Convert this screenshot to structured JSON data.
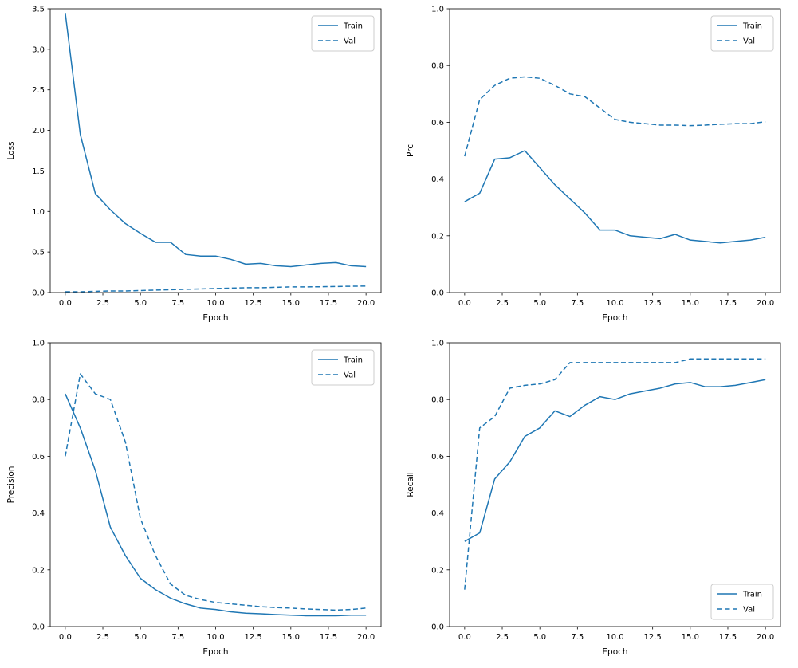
{
  "figure": {
    "background": "#ffffff",
    "accent_color": "#1f77b4",
    "spine_color": "#000000",
    "legend_border_color": "#cccccc"
  },
  "chart_data": [
    {
      "type": "line",
      "title": "",
      "xlabel": "Epoch",
      "ylabel": "Loss",
      "xlim": [
        -1,
        21
      ],
      "ylim": [
        0,
        3.5
      ],
      "xticks": [
        0.0,
        2.5,
        5.0,
        7.5,
        10.0,
        12.5,
        15.0,
        17.5,
        20.0
      ],
      "yticks": [
        0.0,
        0.5,
        1.0,
        1.5,
        2.0,
        2.5,
        3.0,
        3.5
      ],
      "grid": false,
      "legend_position": "upper-right",
      "x": [
        0,
        1,
        2,
        3,
        4,
        5,
        6,
        7,
        8,
        9,
        10,
        11,
        12,
        13,
        14,
        15,
        16,
        17,
        18,
        19,
        20
      ],
      "series": [
        {
          "name": "Train",
          "style": "solid",
          "color": "#1f77b4",
          "values": [
            3.45,
            1.95,
            1.22,
            1.02,
            0.85,
            0.73,
            0.62,
            0.62,
            0.47,
            0.45,
            0.45,
            0.41,
            0.35,
            0.36,
            0.33,
            0.32,
            0.34,
            0.36,
            0.37,
            0.33,
            0.32
          ]
        },
        {
          "name": "Val",
          "style": "dashed",
          "color": "#1f77b4",
          "values": [
            0.01,
            0.01,
            0.015,
            0.02,
            0.02,
            0.025,
            0.03,
            0.035,
            0.04,
            0.045,
            0.05,
            0.055,
            0.06,
            0.06,
            0.065,
            0.07,
            0.07,
            0.072,
            0.075,
            0.078,
            0.08
          ]
        }
      ]
    },
    {
      "type": "line",
      "title": "",
      "xlabel": "Epoch",
      "ylabel": "Prc",
      "xlim": [
        -1,
        21
      ],
      "ylim": [
        0,
        1.0
      ],
      "xticks": [
        0.0,
        2.5,
        5.0,
        7.5,
        10.0,
        12.5,
        15.0,
        17.5,
        20.0
      ],
      "yticks": [
        0.0,
        0.2,
        0.4,
        0.6,
        0.8,
        1.0
      ],
      "grid": false,
      "legend_position": "upper-right",
      "x": [
        0,
        1,
        2,
        3,
        4,
        5,
        6,
        7,
        8,
        9,
        10,
        11,
        12,
        13,
        14,
        15,
        16,
        17,
        18,
        19,
        20
      ],
      "series": [
        {
          "name": "Train",
          "style": "solid",
          "color": "#1f77b4",
          "values": [
            0.32,
            0.35,
            0.47,
            0.475,
            0.5,
            0.44,
            0.38,
            0.33,
            0.28,
            0.22,
            0.22,
            0.2,
            0.195,
            0.19,
            0.205,
            0.185,
            0.18,
            0.175,
            0.18,
            0.185,
            0.195
          ]
        },
        {
          "name": "Val",
          "style": "dashed",
          "color": "#1f77b4",
          "values": [
            0.48,
            0.68,
            0.73,
            0.755,
            0.76,
            0.755,
            0.73,
            0.7,
            0.69,
            0.65,
            0.61,
            0.6,
            0.595,
            0.59,
            0.59,
            0.588,
            0.59,
            0.593,
            0.595,
            0.595,
            0.602
          ]
        }
      ]
    },
    {
      "type": "line",
      "title": "",
      "xlabel": "Epoch",
      "ylabel": "Precision",
      "xlim": [
        -1,
        21
      ],
      "ylim": [
        0,
        1.0
      ],
      "xticks": [
        0.0,
        2.5,
        5.0,
        7.5,
        10.0,
        12.5,
        15.0,
        17.5,
        20.0
      ],
      "yticks": [
        0.0,
        0.2,
        0.4,
        0.6,
        0.8,
        1.0
      ],
      "grid": false,
      "legend_position": "upper-right",
      "x": [
        0,
        1,
        2,
        3,
        4,
        5,
        6,
        7,
        8,
        9,
        10,
        11,
        12,
        13,
        14,
        15,
        16,
        17,
        18,
        19,
        20
      ],
      "series": [
        {
          "name": "Train",
          "style": "solid",
          "color": "#1f77b4",
          "values": [
            0.82,
            0.7,
            0.55,
            0.35,
            0.25,
            0.17,
            0.13,
            0.1,
            0.08,
            0.065,
            0.06,
            0.052,
            0.047,
            0.045,
            0.042,
            0.04,
            0.038,
            0.038,
            0.038,
            0.04,
            0.04
          ]
        },
        {
          "name": "Val",
          "style": "dashed",
          "color": "#1f77b4",
          "values": [
            0.6,
            0.89,
            0.82,
            0.8,
            0.65,
            0.38,
            0.25,
            0.15,
            0.11,
            0.095,
            0.085,
            0.08,
            0.075,
            0.07,
            0.067,
            0.065,
            0.062,
            0.06,
            0.058,
            0.06,
            0.065
          ]
        }
      ]
    },
    {
      "type": "line",
      "title": "",
      "xlabel": "Epoch",
      "ylabel": "Recall",
      "xlim": [
        -1,
        21
      ],
      "ylim": [
        0,
        1.0
      ],
      "xticks": [
        0.0,
        2.5,
        5.0,
        7.5,
        10.0,
        12.5,
        15.0,
        17.5,
        20.0
      ],
      "yticks": [
        0.0,
        0.2,
        0.4,
        0.6,
        0.8,
        1.0
      ],
      "grid": false,
      "legend_position": "lower-right",
      "x": [
        0,
        1,
        2,
        3,
        4,
        5,
        6,
        7,
        8,
        9,
        10,
        11,
        12,
        13,
        14,
        15,
        16,
        17,
        18,
        19,
        20
      ],
      "series": [
        {
          "name": "Train",
          "style": "solid",
          "color": "#1f77b4",
          "values": [
            0.3,
            0.33,
            0.52,
            0.58,
            0.67,
            0.7,
            0.76,
            0.74,
            0.78,
            0.81,
            0.8,
            0.82,
            0.83,
            0.84,
            0.855,
            0.86,
            0.845,
            0.845,
            0.85,
            0.86,
            0.87
          ]
        },
        {
          "name": "Val",
          "style": "dashed",
          "color": "#1f77b4",
          "values": [
            0.13,
            0.7,
            0.74,
            0.84,
            0.85,
            0.855,
            0.87,
            0.93,
            0.93,
            0.93,
            0.93,
            0.93,
            0.93,
            0.93,
            0.93,
            0.943,
            0.943,
            0.943,
            0.943,
            0.943,
            0.943
          ]
        }
      ]
    }
  ]
}
